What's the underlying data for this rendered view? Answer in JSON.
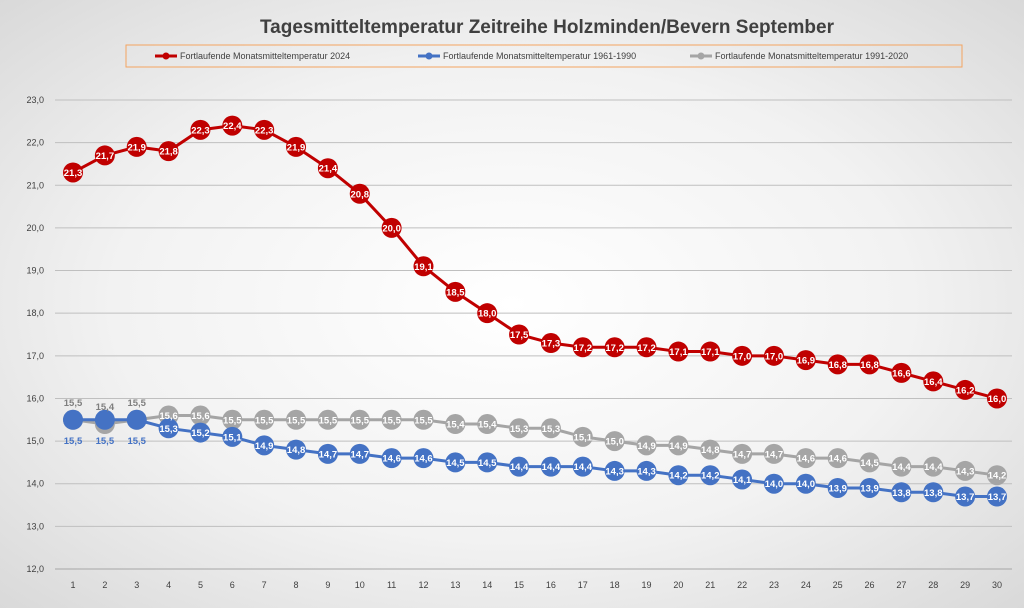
{
  "chart_data": {
    "type": "line",
    "title": "Tagesmitteltemperatur Zeitreihe Holzminden/Bevern September",
    "xlabel": "",
    "ylabel": "",
    "x": [
      1,
      2,
      3,
      4,
      5,
      6,
      7,
      8,
      9,
      10,
      11,
      12,
      13,
      14,
      15,
      16,
      17,
      18,
      19,
      20,
      21,
      22,
      23,
      24,
      25,
      26,
      27,
      28,
      29,
      30
    ],
    "x_tick_labels": [
      "1",
      "2",
      "3",
      "4",
      "5",
      "6",
      "7",
      "8",
      "9",
      "10",
      "11",
      "12",
      "13",
      "14",
      "15",
      "16",
      "17",
      "18",
      "19",
      "20",
      "21",
      "22",
      "23",
      "24",
      "25",
      "26",
      "27",
      "28",
      "29",
      "30"
    ],
    "ylim": [
      12.0,
      23.0
    ],
    "y_tick_labels": [
      "12,0",
      "13,0",
      "14,0",
      "15,0",
      "16,0",
      "17,0",
      "18,0",
      "19,0",
      "20,0",
      "21,0",
      "22,0",
      "23,0"
    ],
    "grid": true,
    "legend_position": "top",
    "series": [
      {
        "name": "Fortlaufende Monatsmitteltemperatur 2024",
        "color": "#c00000",
        "values": [
          21.3,
          21.7,
          21.9,
          21.8,
          22.3,
          22.4,
          22.3,
          21.9,
          21.4,
          20.8,
          20.0,
          19.1,
          18.5,
          18.0,
          17.5,
          17.3,
          17.2,
          17.2,
          17.2,
          17.1,
          17.1,
          17.0,
          17.0,
          16.9,
          16.8,
          16.8,
          16.6,
          16.4,
          16.2,
          16.0
        ]
      },
      {
        "name": "Fortlaufende Monatsmitteltemperatur 1961-1990",
        "color": "#4472c4",
        "values": [
          15.5,
          15.5,
          15.5,
          15.3,
          15.2,
          15.1,
          14.9,
          14.8,
          14.7,
          14.7,
          14.6,
          14.6,
          14.5,
          14.5,
          14.4,
          14.4,
          14.4,
          14.3,
          14.3,
          14.2,
          14.2,
          14.1,
          14.0,
          14.0,
          13.9,
          13.9,
          13.8,
          13.8,
          13.7,
          13.7
        ]
      },
      {
        "name": "Fortlaufende Monatsmitteltemperatur 1991-2020",
        "color": "#a5a5a5",
        "values": [
          15.5,
          15.4,
          15.5,
          15.6,
          15.6,
          15.5,
          15.5,
          15.5,
          15.5,
          15.5,
          15.5,
          15.5,
          15.4,
          15.4,
          15.3,
          15.3,
          15.1,
          15.0,
          14.9,
          14.9,
          14.8,
          14.7,
          14.7,
          14.6,
          14.6,
          14.5,
          14.4,
          14.4,
          14.3,
          14.2
        ]
      }
    ]
  }
}
